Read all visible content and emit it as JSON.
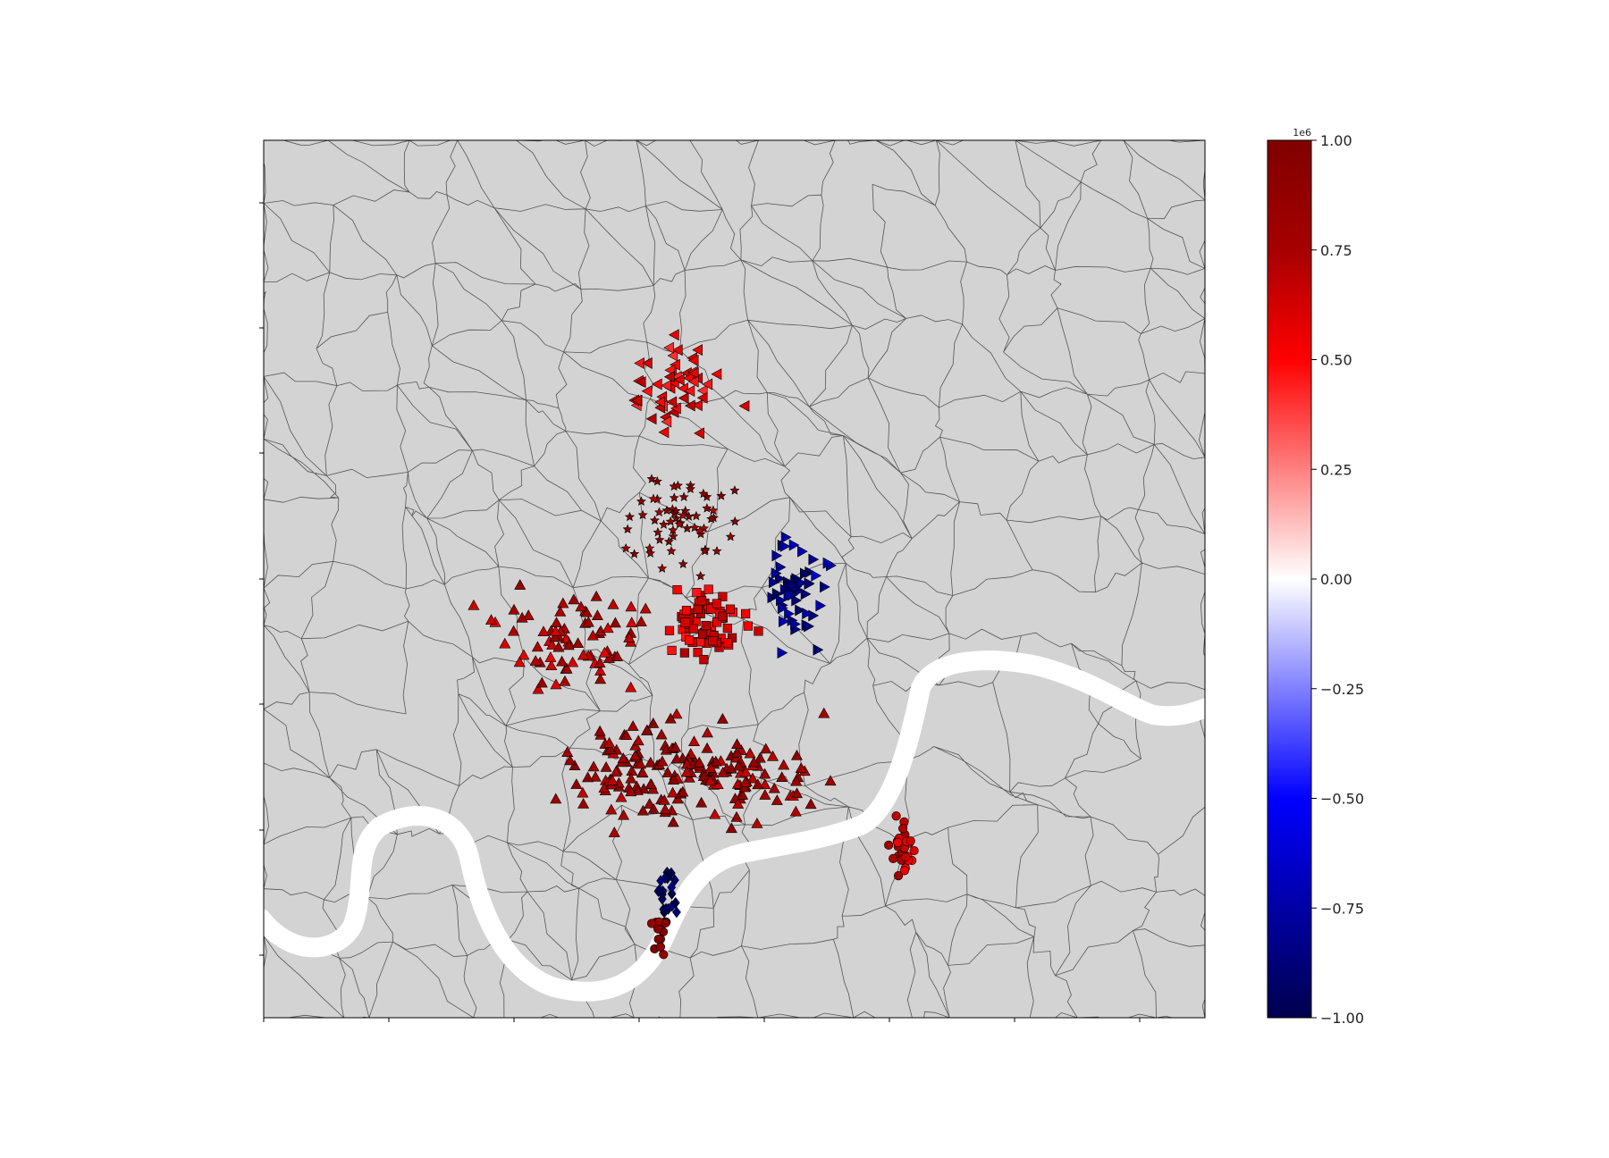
{
  "map": {
    "background_color": "#d3d3d3",
    "boundary_color": "#555555",
    "river_color": "#ffffff"
  },
  "colorbar": {
    "cmap": "seismic",
    "offset_text": "1e6",
    "ticks": [
      {
        "value": 1.0,
        "label": "1.00"
      },
      {
        "value": 0.75,
        "label": "0.75"
      },
      {
        "value": 0.5,
        "label": "0.50"
      },
      {
        "value": 0.25,
        "label": "0.25"
      },
      {
        "value": 0.0,
        "label": "0.00"
      },
      {
        "value": -0.25,
        "label": "−0.25"
      },
      {
        "value": -0.5,
        "label": "−0.50"
      },
      {
        "value": -0.75,
        "label": "−0.75"
      },
      {
        "value": -1.0,
        "label": "−1.00"
      }
    ],
    "vmin": -1.0,
    "vmax": 1.0
  },
  "clusters": [
    {
      "marker": "triangle-left",
      "value": 0.55
    },
    {
      "marker": "star",
      "value": 0.85
    },
    {
      "marker": "triangle-right",
      "value": -0.8
    },
    {
      "marker": "square",
      "value": 0.6
    },
    {
      "marker": "triangle-up",
      "value": 0.7
    },
    {
      "marker": "triangle-up",
      "value": 0.8
    },
    {
      "marker": "circle",
      "value": 0.65
    },
    {
      "marker": "diamond",
      "value": -0.95
    },
    {
      "marker": "circle",
      "value": 0.9
    }
  ]
}
